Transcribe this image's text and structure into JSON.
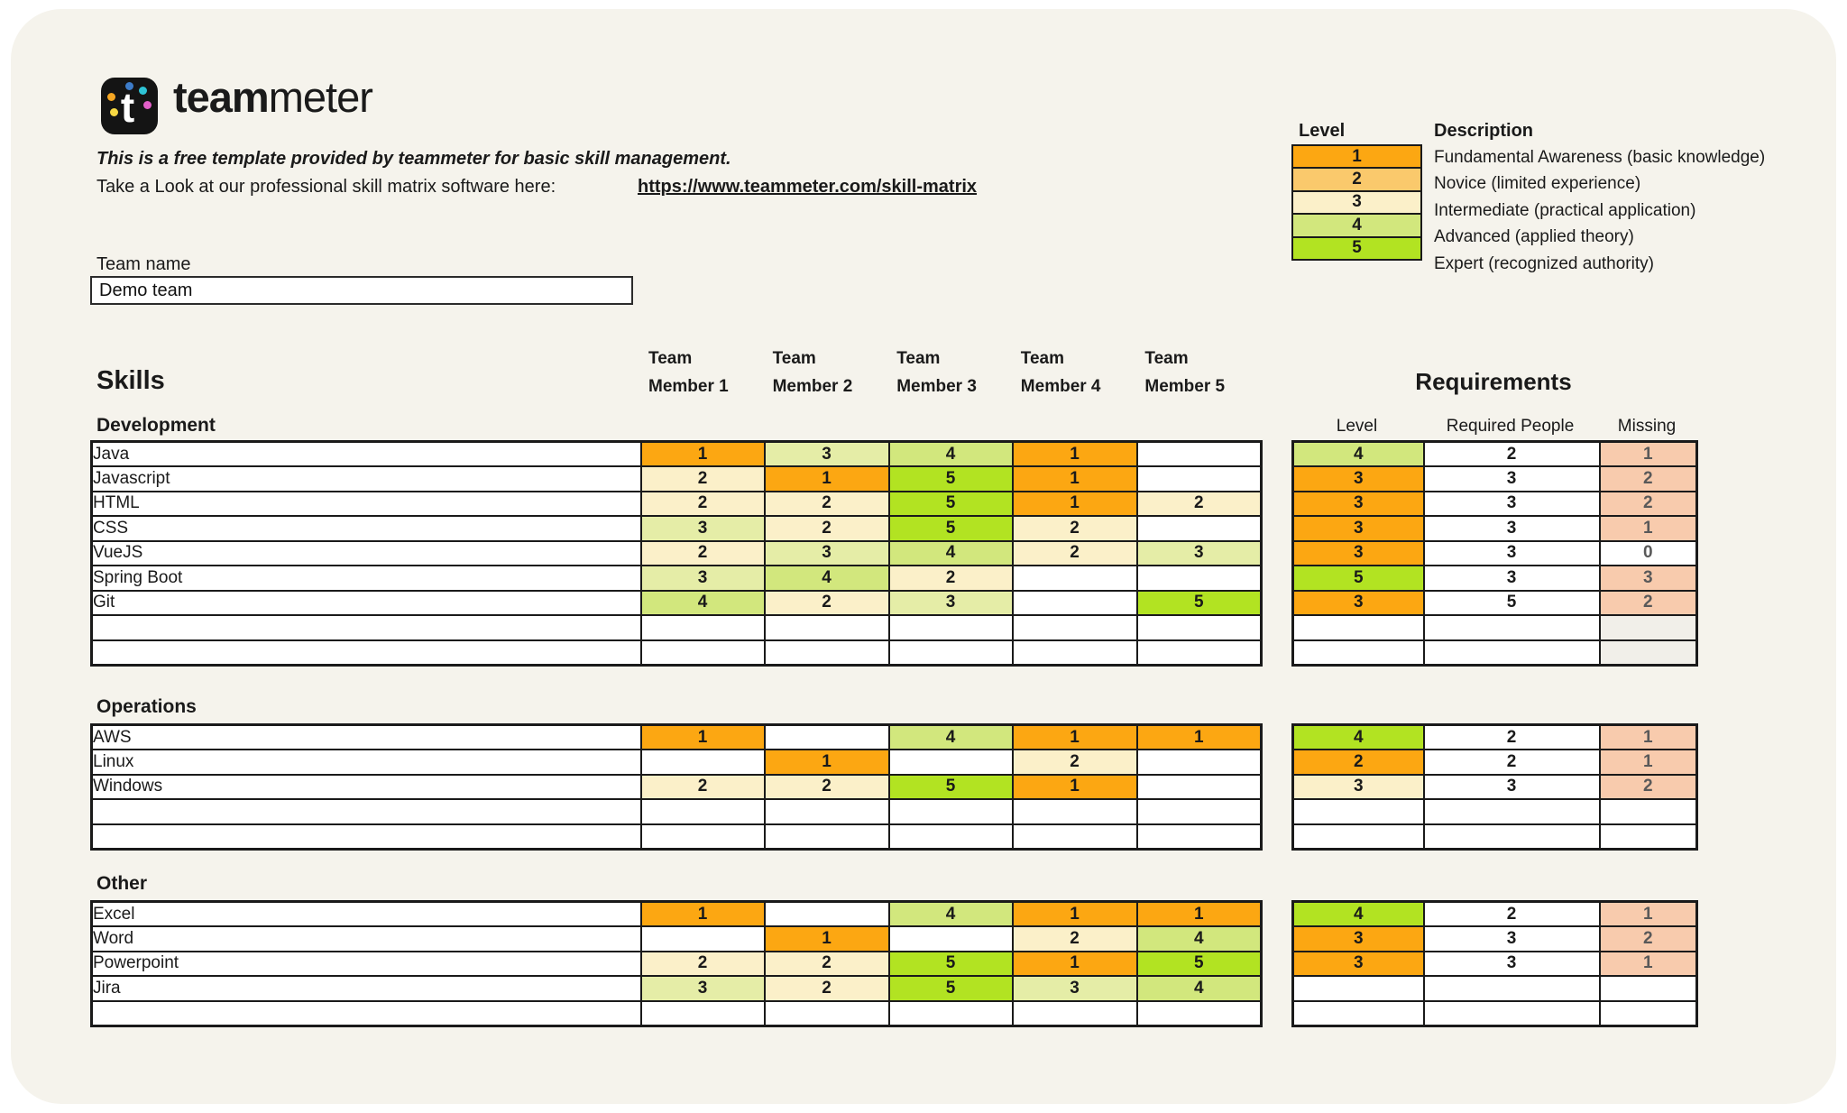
{
  "header": {
    "brand_bold": "team",
    "brand_light": "meter",
    "tagline": "This is a free template provided by teammeter for basic skill management.",
    "link_label": "Take a Look at our professional skill matrix software here:",
    "link_url": "https://www.teammeter.com/skill-matrix"
  },
  "team": {
    "label": "Team name",
    "value": "Demo team"
  },
  "legend": {
    "level_header": "Level",
    "description_header": "Description",
    "rows": [
      {
        "level": "1",
        "color": "orange",
        "description": "Fundamental Awareness (basic knowledge)"
      },
      {
        "level": "2",
        "color": "light_orange",
        "description": "Novice (limited experience)"
      },
      {
        "level": "3",
        "color": "cream",
        "description": "Intermediate (practical application)"
      },
      {
        "level": "4",
        "color": "light_green",
        "description": "Advanced (applied theory)"
      },
      {
        "level": "5",
        "color": "bright_green",
        "description": "Expert (recognized authority)"
      }
    ]
  },
  "colors": {
    "card_background": "#F5F3EC",
    "orange": "#FCA712",
    "light_orange": "#FAC96C",
    "cream": "#FBF0C9",
    "pale_green": "#E5EDA7",
    "light_green": "#D2E77D",
    "bright_green": "#B2E322",
    "salmon": "#F8CBAD",
    "missing_text": "#595959"
  },
  "matrix": {
    "skills_title": "Skills",
    "member_headers": [
      "Team\nMember 1",
      "Team\nMember 2",
      "Team\nMember 3",
      "Team\nMember 4",
      "Team\nMember 5"
    ],
    "requirements_title": "Requirements",
    "requirements_headers": [
      "Level",
      "Required People",
      "Missing"
    ],
    "value_colors": {
      "1": "orange",
      "2": "cream",
      "3": "pale_green",
      "4": "light_green",
      "5": "bright_green"
    },
    "sections": [
      {
        "name": "Development",
        "rows": [
          {
            "skill": "Java",
            "levels": [
              "1",
              "3",
              "4",
              "1",
              ""
            ]
          },
          {
            "skill": "Javascript",
            "levels": [
              "2",
              "1",
              "5",
              "1",
              ""
            ]
          },
          {
            "skill": "HTML",
            "levels": [
              "2",
              "2",
              "5",
              "1",
              "2"
            ]
          },
          {
            "skill": "CSS",
            "levels": [
              "3",
              "2",
              "5",
              "2",
              ""
            ]
          },
          {
            "skill": "VueJS",
            "levels": [
              "2",
              "3",
              "4",
              "2",
              "3"
            ]
          },
          {
            "skill": "Spring Boot",
            "levels": [
              "3",
              "4",
              "2",
              "",
              ""
            ]
          },
          {
            "skill": "Git",
            "levels": [
              "4",
              "2",
              "3",
              "",
              "5"
            ]
          },
          {
            "skill": "",
            "levels": [
              "",
              "",
              "",
              "",
              ""
            ]
          },
          {
            "skill": "",
            "levels": [
              "",
              "",
              "",
              "",
              ""
            ]
          }
        ],
        "requirements": [
          {
            "level": "4",
            "level_color": "light_green",
            "required": "2",
            "missing": "1",
            "missing_color": "salmon"
          },
          {
            "level": "3",
            "level_color": "orange",
            "required": "3",
            "missing": "2",
            "missing_color": "salmon"
          },
          {
            "level": "3",
            "level_color": "orange",
            "required": "3",
            "missing": "2",
            "missing_color": "salmon"
          },
          {
            "level": "3",
            "level_color": "orange",
            "required": "3",
            "missing": "1",
            "missing_color": "salmon"
          },
          {
            "level": "3",
            "level_color": "orange",
            "required": "3",
            "missing": "0",
            "missing_color": "white"
          },
          {
            "level": "5",
            "level_color": "bright_green",
            "required": "3",
            "missing": "3",
            "missing_color": "salmon"
          },
          {
            "level": "3",
            "level_color": "orange",
            "required": "5",
            "missing": "2",
            "missing_color": "salmon"
          },
          {
            "level": "",
            "level_color": "white",
            "required": "",
            "missing": "",
            "missing_color": "gray"
          },
          {
            "level": "",
            "level_color": "white",
            "required": "",
            "missing": "",
            "missing_color": "gray"
          }
        ]
      },
      {
        "name": "Operations",
        "rows": [
          {
            "skill": "AWS",
            "levels": [
              "1",
              "",
              "4",
              "1",
              "1"
            ]
          },
          {
            "skill": "Linux",
            "levels": [
              "",
              "1",
              "",
              "2",
              ""
            ]
          },
          {
            "skill": "Windows",
            "levels": [
              "2",
              "2",
              "5",
              "1",
              ""
            ]
          },
          {
            "skill": "",
            "levels": [
              "",
              "",
              "",
              "",
              ""
            ]
          },
          {
            "skill": "",
            "levels": [
              "",
              "",
              "",
              "",
              ""
            ]
          }
        ],
        "requirements": [
          {
            "level": "4",
            "level_color": "bright_green",
            "required": "2",
            "missing": "1",
            "missing_color": "salmon"
          },
          {
            "level": "2",
            "level_color": "orange",
            "required": "2",
            "missing": "1",
            "missing_color": "salmon"
          },
          {
            "level": "3",
            "level_color": "cream",
            "required": "3",
            "missing": "2",
            "missing_color": "salmon"
          },
          {
            "level": "",
            "level_color": "white",
            "required": "",
            "missing": "",
            "missing_color": "white"
          },
          {
            "level": "",
            "level_color": "white",
            "required": "",
            "missing": "",
            "missing_color": "white"
          }
        ]
      },
      {
        "name": "Other",
        "rows": [
          {
            "skill": "Excel",
            "levels": [
              "1",
              "",
              "4",
              "1",
              "1"
            ]
          },
          {
            "skill": "Word",
            "levels": [
              "",
              "1",
              "",
              "2",
              "4"
            ]
          },
          {
            "skill": "Powerpoint",
            "levels": [
              "2",
              "2",
              "5",
              "1",
              "5"
            ]
          },
          {
            "skill": "Jira",
            "levels": [
              "3",
              "2",
              "5",
              "3",
              "4"
            ]
          },
          {
            "skill": "",
            "levels": [
              "",
              "",
              "",
              "",
              ""
            ]
          }
        ],
        "requirements": [
          {
            "level": "4",
            "level_color": "bright_green",
            "required": "2",
            "missing": "1",
            "missing_color": "salmon"
          },
          {
            "level": "3",
            "level_color": "orange",
            "required": "3",
            "missing": "2",
            "missing_color": "salmon"
          },
          {
            "level": "3",
            "level_color": "orange",
            "required": "3",
            "missing": "1",
            "missing_color": "salmon"
          },
          {
            "level": "",
            "level_color": "white",
            "required": "",
            "missing": "",
            "missing_color": "white"
          },
          {
            "level": "",
            "level_color": "white",
            "required": "",
            "missing": "",
            "missing_color": "white"
          }
        ]
      }
    ]
  }
}
